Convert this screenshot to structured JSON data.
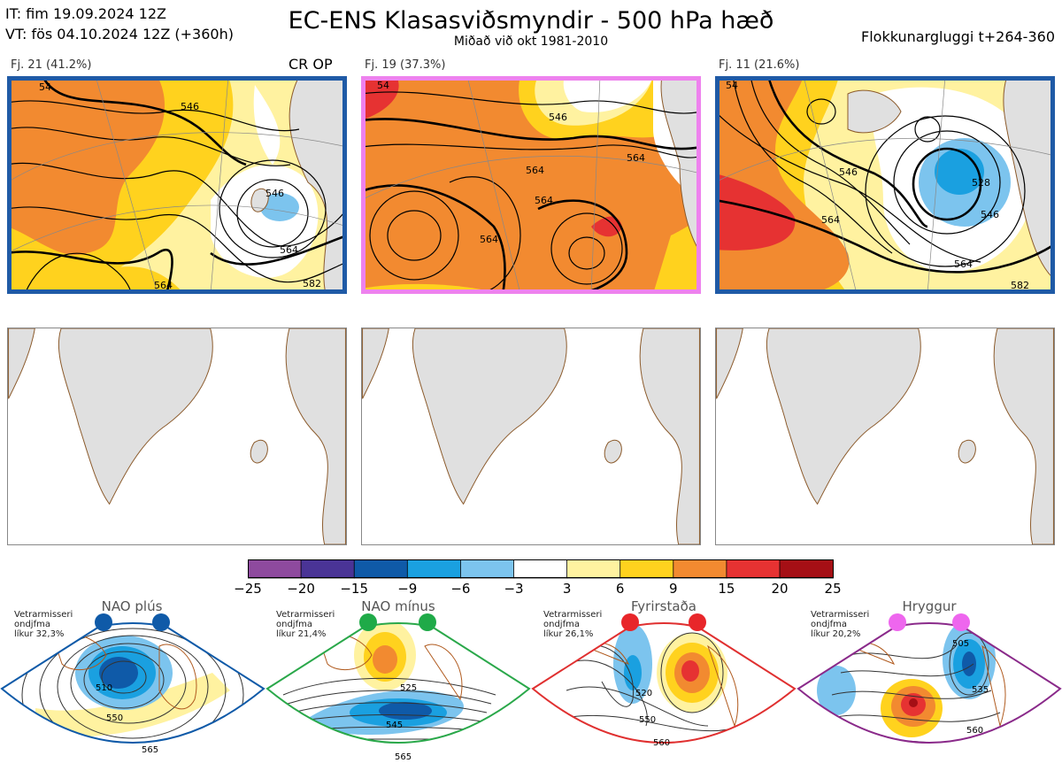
{
  "header": {
    "it_line": "IT: fim 19.09.2024 12Z",
    "vt_line": "VT: fös 04.10.2024 12Z  (+360h)",
    "title": "EC-ENS Klasasviðsmyndir - 500 hPa hæð",
    "subtitle": "Miðað við okt 1981-2010",
    "window": "Flokkunargluggi t+264-360"
  },
  "clusters": [
    {
      "label": "Fj. 21 (41.2%)",
      "tag": "CR OP",
      "frame_color": "#1f5aa6",
      "contours": [
        "546",
        "546",
        "564",
        "564",
        "582",
        "54"
      ]
    },
    {
      "label": "Fj. 19 (37.3%)",
      "tag": "",
      "frame_color": "#ee82ee",
      "contours": [
        "546",
        "564",
        "564",
        "564",
        "564",
        "54"
      ]
    },
    {
      "label": "Fj. 11 (21.6%)",
      "tag": "",
      "frame_color": "#1f5aa6",
      "contours": [
        "546",
        "528",
        "546",
        "564",
        "564",
        "582",
        "54"
      ]
    }
  ],
  "colorbar": {
    "ticks": [
      "−25",
      "−20",
      "−15",
      "−9",
      "−6",
      "−3",
      "3",
      "6",
      "9",
      "15",
      "20",
      "25"
    ],
    "colors": [
      "#8e4a9e",
      "#4a3496",
      "#0f5aa8",
      "#1aa0e0",
      "#7cc4ee",
      "#ffffff",
      "#fff2a0",
      "#ffd21e",
      "#f28a30",
      "#e63232",
      "#a50f15"
    ]
  },
  "regimes": [
    {
      "name": "NAO plús",
      "note": [
        "Vetrarmisseri",
        "ondjfma",
        "líkur 32,3%"
      ],
      "dot_color": "#0f5aa8",
      "frame_color": "#0f5aa8",
      "contours": [
        "510",
        "550",
        "565"
      ]
    },
    {
      "name": "NAO mínus",
      "note": [
        "Vetrarmisseri",
        "ondjfma",
        "líkur 21,4%"
      ],
      "dot_color": "#1faa48",
      "frame_color": "#2aa84a",
      "contours": [
        "525",
        "545",
        "565"
      ]
    },
    {
      "name": "Fyrirstaða",
      "note": [
        "Vetrarmisseri",
        "ondjfma",
        "líkur 26,1%"
      ],
      "dot_color": "#e8262a",
      "frame_color": "#e03030",
      "contours": [
        "520",
        "550",
        "560"
      ]
    },
    {
      "name": "Hryggur",
      "note": [
        "Vetrarmisseri",
        "ondjfma",
        "líkur 20,2%"
      ],
      "dot_color": "#ee66ee",
      "frame_color": "#8a2a8a",
      "contours": [
        "505",
        "535",
        "560"
      ]
    }
  ]
}
